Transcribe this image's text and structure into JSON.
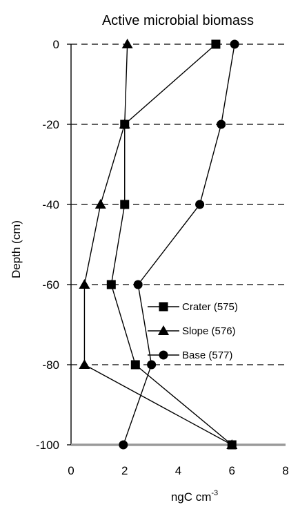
{
  "chart_data": {
    "type": "line",
    "title": "Active microbial biomass",
    "xlabel": "ngC cm",
    "xlabel_superscript": "-3",
    "ylabel": "Depth (cm)",
    "xlim": [
      0,
      8
    ],
    "ylim": [
      -100,
      0
    ],
    "x_ticks": [
      "0",
      "2",
      "4",
      "6",
      "8"
    ],
    "y_ticks": [
      "0",
      "-20",
      "-40",
      "-60",
      "-80",
      "-100"
    ],
    "grid": "horizontal dashed",
    "legend_position": "lower-right",
    "series": [
      {
        "name": "Crater (575)",
        "marker": "square",
        "points": [
          {
            "x": 5.4,
            "y": 0
          },
          {
            "x": 2.0,
            "y": -20
          },
          {
            "x": 2.0,
            "y": -40
          },
          {
            "x": 1.5,
            "y": -60
          },
          {
            "x": 2.4,
            "y": -80
          },
          {
            "x": 6.0,
            "y": -100
          }
        ]
      },
      {
        "name": "Slope (576)",
        "marker": "triangle",
        "points": [
          {
            "x": 2.1,
            "y": 0
          },
          {
            "x": 2.0,
            "y": -20
          },
          {
            "x": 1.1,
            "y": -40
          },
          {
            "x": 0.5,
            "y": -60
          },
          {
            "x": 0.5,
            "y": -80
          },
          {
            "x": 6.0,
            "y": -100
          }
        ]
      },
      {
        "name": "Base (577)",
        "marker": "circle",
        "points": [
          {
            "x": 6.1,
            "y": 0
          },
          {
            "x": 5.6,
            "y": -20
          },
          {
            "x": 4.8,
            "y": -40
          },
          {
            "x": 2.5,
            "y": -60
          },
          {
            "x": 3.0,
            "y": -80
          },
          {
            "x": 1.95,
            "y": -100
          }
        ]
      }
    ]
  }
}
